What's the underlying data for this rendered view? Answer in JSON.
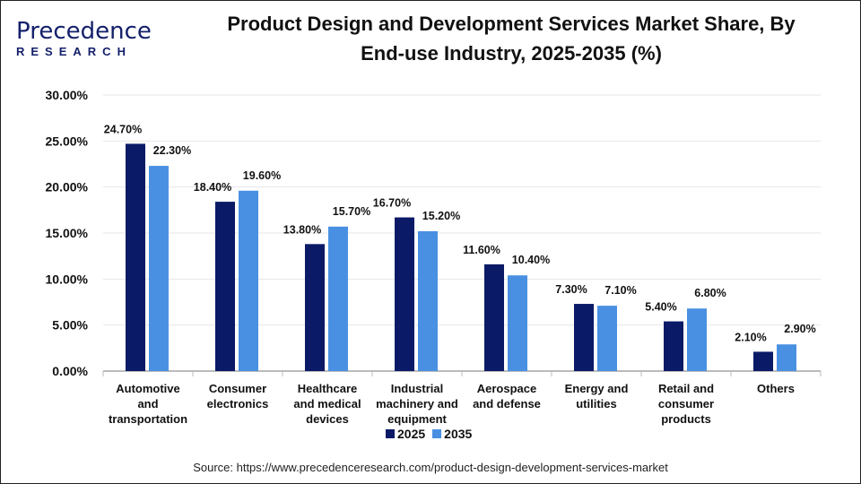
{
  "logo": {
    "text_top": "Precedence",
    "text_bottom": "RESEARCH"
  },
  "chart_data": {
    "type": "bar",
    "title": "Product Design and Development Services Market Share, By End-use Industry, 2025-2035 (%)",
    "title_lines": [
      "Product Design and Development Services Market Share, By",
      "End-use Industry, 2025-2035 (%)"
    ],
    "categories": [
      "Automotive and transportation",
      "Consumer electronics",
      "Healthcare and medical devices",
      "Industrial machinery and equipment",
      "Aerospace and defense",
      "Energy and utilities",
      "Retail and consumer products",
      "Others"
    ],
    "category_lines": [
      [
        "Automotive",
        "and",
        "transportation"
      ],
      [
        "Consumer",
        "electronics"
      ],
      [
        "Healthcare",
        "and medical",
        "devices"
      ],
      [
        "Industrial",
        "machinery and",
        "equipment"
      ],
      [
        "Aerospace",
        "and defense"
      ],
      [
        "Energy and",
        "utilities"
      ],
      [
        "Retail and",
        "consumer",
        "products"
      ],
      [
        "Others"
      ]
    ],
    "series": [
      {
        "name": "2025",
        "color": "#0b1a66",
        "values": [
          24.7,
          18.4,
          13.8,
          16.7,
          11.6,
          7.3,
          5.4,
          2.1
        ],
        "labels": [
          "24.70%",
          "18.40%",
          "13.80%",
          "16.70%",
          "11.60%",
          "7.30%",
          "5.40%",
          "2.10%"
        ]
      },
      {
        "name": "2035",
        "color": "#4a90e2",
        "values": [
          22.3,
          19.6,
          15.7,
          15.2,
          10.4,
          7.1,
          6.8,
          2.9
        ],
        "labels": [
          "22.30%",
          "19.60%",
          "15.70%",
          "15.20%",
          "10.40%",
          "7.10%",
          "6.80%",
          "2.90%"
        ]
      }
    ],
    "yticks": [
      "0.00%",
      "5.00%",
      "10.00%",
      "15.00%",
      "20.00%",
      "25.00%",
      "30.00%"
    ],
    "ylim": [
      0,
      30
    ],
    "grid": true,
    "legend": "bottom",
    "xlabel": "",
    "ylabel": ""
  },
  "source": "Source: https://www.precedenceresearch.com/product-design-development-services-market"
}
